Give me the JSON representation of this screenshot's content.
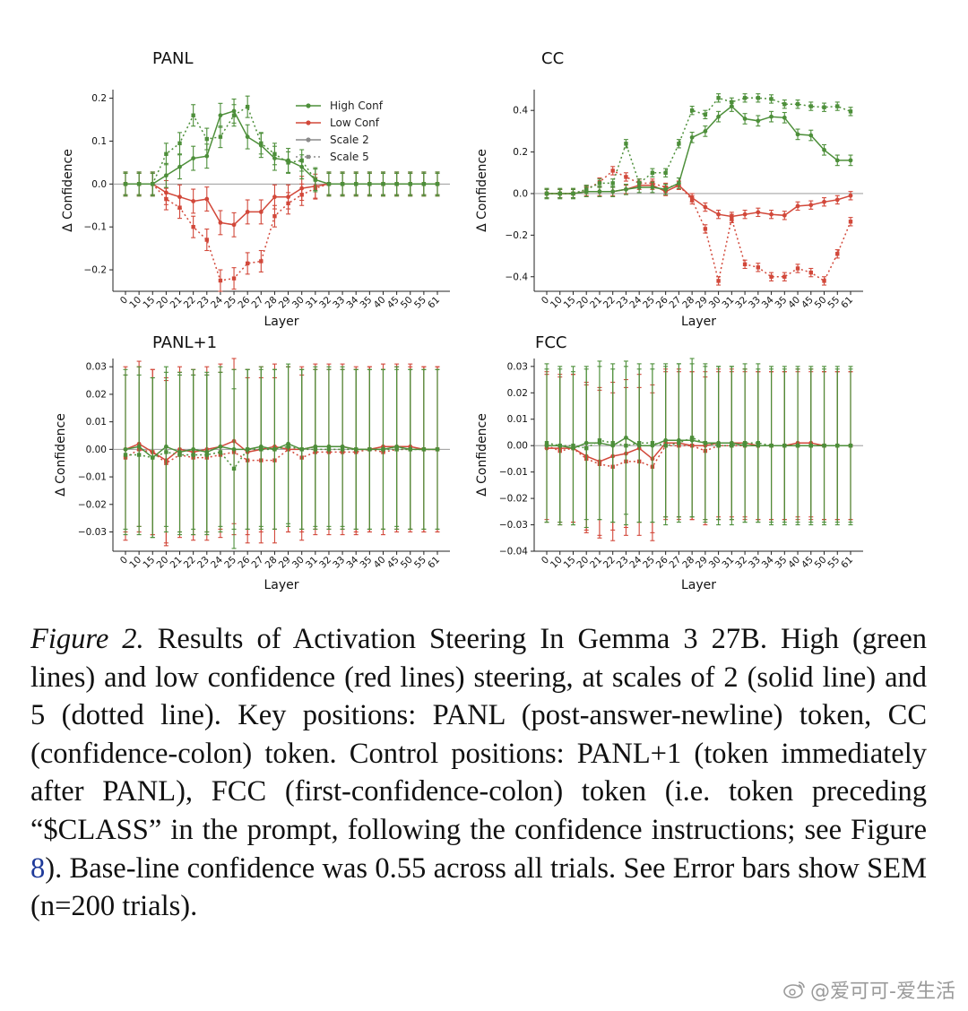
{
  "colors": {
    "high": "#4d8f3a",
    "low": "#d2483a",
    "scale2_legend": "#8a8a8a"
  },
  "chart_data": [
    {
      "type": "line",
      "title": "PANL",
      "xlabel": "Layer",
      "ylabel": "Δ Confidence",
      "categories": [
        "0",
        "10",
        "15",
        "20",
        "21",
        "22",
        "23",
        "24",
        "25",
        "26",
        "27",
        "28",
        "29",
        "30",
        "31",
        "32",
        "33",
        "34",
        "35",
        "40",
        "45",
        "50",
        "55",
        "61"
      ],
      "ylim": [
        -0.25,
        0.22
      ],
      "yticks": [
        -0.2,
        -0.1,
        0.0,
        0.1,
        0.2
      ],
      "ytick_labels": [
        "−0.2",
        "−0.1",
        "0.0",
        "0.1",
        "0.2"
      ],
      "legend": {
        "position": "top-right",
        "entries": [
          {
            "label": "High Conf",
            "style": "high-solid"
          },
          {
            "label": "Low Conf",
            "style": "low-solid"
          },
          {
            "label": "Scale 2",
            "style": "gray-solid"
          },
          {
            "label": "Scale 5",
            "style": "gray-dotted"
          }
        ]
      },
      "series": [
        {
          "name": "High Conf, Scale 2",
          "values": [
            0,
            0,
            0,
            0.02,
            0.04,
            0.06,
            0.065,
            0.16,
            0.17,
            0.11,
            0.09,
            0.06,
            0.055,
            0.04,
            0.01,
            0,
            0,
            0,
            0,
            0,
            0,
            0,
            0,
            0
          ],
          "err": 0.028
        },
        {
          "name": "High Conf, Scale 5",
          "values": [
            0,
            0,
            0,
            0.07,
            0.095,
            0.16,
            0.105,
            0.11,
            0.16,
            0.18,
            0.095,
            0.07,
            0.05,
            0.055,
            0.01,
            0,
            0,
            0,
            0,
            0,
            0,
            0,
            0,
            0
          ],
          "err": 0.025
        },
        {
          "name": "Low Conf, Scale 2",
          "values": [
            0,
            0,
            0,
            -0.02,
            -0.03,
            -0.04,
            -0.035,
            -0.09,
            -0.095,
            -0.065,
            -0.065,
            -0.03,
            -0.03,
            -0.01,
            -0.005,
            0,
            0,
            0,
            0,
            0,
            0,
            0,
            0,
            0
          ],
          "err": 0.028
        },
        {
          "name": "Low Conf, Scale 5",
          "values": [
            0,
            0,
            0,
            -0.035,
            -0.055,
            -0.1,
            -0.13,
            -0.225,
            -0.22,
            -0.185,
            -0.18,
            -0.075,
            -0.045,
            -0.025,
            -0.01,
            0,
            0,
            0,
            0,
            0,
            0,
            0,
            0,
            0
          ],
          "err": 0.025
        }
      ]
    },
    {
      "type": "line",
      "title": "CC",
      "xlabel": "Layer",
      "ylabel": "Δ Confidence",
      "categories": [
        "0",
        "10",
        "15",
        "20",
        "21",
        "22",
        "23",
        "24",
        "25",
        "26",
        "27",
        "28",
        "29",
        "30",
        "31",
        "32",
        "33",
        "34",
        "35",
        "40",
        "45",
        "50",
        "55",
        "61"
      ],
      "ylim": [
        -0.47,
        0.5
      ],
      "yticks": [
        -0.4,
        -0.2,
        0.0,
        0.2,
        0.4
      ],
      "ytick_labels": [
        "−0.4",
        "−0.2",
        "0.0",
        "0.2",
        "0.4"
      ],
      "series": [
        {
          "name": "High Conf, Scale 2",
          "values": [
            0,
            0,
            0,
            0.01,
            0.01,
            0.01,
            0.02,
            0.03,
            0.03,
            0.02,
            0.05,
            0.27,
            0.3,
            0.37,
            0.42,
            0.36,
            0.35,
            0.37,
            0.365,
            0.285,
            0.28,
            0.21,
            0.16,
            0.16
          ],
          "err": 0.025
        },
        {
          "name": "High Conf, Scale 5",
          "values": [
            0,
            0,
            0,
            0.02,
            0.05,
            0.05,
            0.24,
            0.05,
            0.1,
            0.1,
            0.24,
            0.4,
            0.38,
            0.46,
            0.44,
            0.46,
            0.46,
            0.455,
            0.43,
            0.43,
            0.42,
            0.415,
            0.42,
            0.395
          ],
          "err": 0.02
        },
        {
          "name": "Low Conf, Scale 2",
          "values": [
            0,
            0,
            0,
            0.01,
            0.01,
            0.01,
            0.02,
            0.04,
            0.04,
            0.01,
            0.04,
            -0.02,
            -0.065,
            -0.1,
            -0.11,
            -0.1,
            -0.09,
            -0.1,
            -0.105,
            -0.06,
            -0.055,
            -0.04,
            -0.03,
            -0.01
          ],
          "err": 0.02
        },
        {
          "name": "Low Conf, Scale 5",
          "values": [
            0,
            0,
            0,
            0.02,
            0.055,
            0.11,
            0.08,
            0.05,
            0.05,
            0.03,
            0.04,
            -0.03,
            -0.17,
            -0.42,
            -0.12,
            -0.34,
            -0.355,
            -0.4,
            -0.4,
            -0.36,
            -0.38,
            -0.42,
            -0.29,
            -0.135
          ],
          "err": 0.02
        }
      ]
    },
    {
      "type": "line",
      "title": "PANL+1",
      "xlabel": "Layer",
      "ylabel": "Δ Confidence",
      "categories": [
        "0",
        "10",
        "15",
        "20",
        "21",
        "22",
        "23",
        "24",
        "25",
        "26",
        "27",
        "28",
        "29",
        "30",
        "31",
        "32",
        "33",
        "34",
        "35",
        "40",
        "45",
        "50",
        "55",
        "61"
      ],
      "ylim": [
        -0.037,
        0.033
      ],
      "yticks": [
        -0.03,
        -0.02,
        -0.01,
        0.0,
        0.01,
        0.02,
        0.03
      ],
      "ytick_labels": [
        "−0.03",
        "−0.02",
        "−0.01",
        "0.00",
        "0.01",
        "0.02",
        "0.03"
      ],
      "series": [
        {
          "name": "High Conf, Scale 2",
          "values": [
            0,
            0.001,
            -0.003,
            0.001,
            -0.001,
            0,
            -0.001,
            0.001,
            0,
            0,
            0.001,
            0,
            0.002,
            0,
            0.001,
            0.001,
            0.001,
            0,
            0,
            0,
            0.001,
            0,
            0,
            0
          ],
          "err": 0.029
        },
        {
          "name": "High Conf, Scale 5",
          "values": [
            -0.002,
            -0.002,
            -0.003,
            -0.001,
            -0.002,
            -0.002,
            -0.002,
            -0.001,
            -0.007,
            0,
            0,
            0,
            0.001,
            0,
            0,
            0,
            0,
            0,
            0,
            0,
            0,
            0,
            0,
            0
          ],
          "err": 0.029
        },
        {
          "name": "Low Conf, Scale 2",
          "values": [
            0,
            0.002,
            -0.001,
            -0.004,
            0,
            -0.001,
            0,
            0.001,
            0.003,
            -0.001,
            0,
            0.001,
            0,
            0,
            0.001,
            0.001,
            0.001,
            0,
            0,
            0.001,
            0.001,
            0.001,
            0,
            0
          ],
          "err": 0.03
        },
        {
          "name": "Low Conf, Scale 5",
          "values": [
            -0.003,
            0,
            -0.001,
            -0.005,
            -0.002,
            -0.003,
            -0.003,
            -0.002,
            -0.001,
            -0.004,
            -0.004,
            -0.004,
            0,
            -0.003,
            -0.001,
            -0.001,
            -0.001,
            -0.001,
            0,
            -0.001,
            0,
            0,
            0,
            0
          ],
          "err": 0.03
        }
      ]
    },
    {
      "type": "line",
      "title": "FCC",
      "xlabel": "Layer",
      "ylabel": "Δ Confidence",
      "categories": [
        "0",
        "10",
        "15",
        "20",
        "21",
        "22",
        "23",
        "24",
        "25",
        "26",
        "27",
        "28",
        "29",
        "30",
        "31",
        "32",
        "33",
        "34",
        "35",
        "40",
        "45",
        "50",
        "55",
        "61"
      ],
      "ylim": [
        -0.04,
        0.033
      ],
      "yticks": [
        -0.04,
        -0.03,
        -0.02,
        -0.01,
        0.0,
        0.01,
        0.02,
        0.03
      ],
      "ytick_labels": [
        "−0.04",
        "−0.03",
        "−0.02",
        "−0.01",
        "0.00",
        "0.01",
        "0.02",
        "0.03"
      ],
      "series": [
        {
          "name": "High Conf, Scale 2",
          "values": [
            0,
            0,
            -0.001,
            0.001,
            0.001,
            0,
            0.003,
            0,
            0,
            0.002,
            0.002,
            0.002,
            0.001,
            0.001,
            0.001,
            0,
            0,
            0,
            0,
            0,
            0,
            0,
            0,
            0
          ],
          "err": 0.029
        },
        {
          "name": "High Conf, Scale 5",
          "values": [
            0.001,
            0,
            0,
            -0.001,
            0.002,
            0.001,
            0,
            0.001,
            0.001,
            0,
            0.001,
            0.003,
            0.001,
            0,
            0,
            0.001,
            0.001,
            0,
            0,
            0,
            0,
            0,
            0,
            0
          ],
          "err": 0.03
        },
        {
          "name": "Low Conf, Scale 2",
          "values": [
            -0.001,
            -0.001,
            -0.001,
            -0.004,
            -0.006,
            -0.004,
            -0.003,
            -0.001,
            -0.005,
            0.001,
            0.001,
            0,
            0,
            0.001,
            0.001,
            0.001,
            0,
            0,
            0,
            0.001,
            0.001,
            0,
            0,
            0
          ],
          "err": 0.028
        },
        {
          "name": "Low Conf, Scale 5",
          "values": [
            0,
            -0.002,
            -0.001,
            -0.005,
            -0.007,
            -0.008,
            -0.006,
            -0.006,
            -0.008,
            0,
            0,
            0,
            -0.002,
            0,
            0,
            0,
            0,
            0,
            0,
            0,
            0,
            0,
            0,
            0
          ],
          "err": 0.028
        }
      ]
    }
  ],
  "caption": {
    "figure_label": "Figure 2.",
    "text_before_ref": "Results of Activation Steering In Gemma 3 27B. High (green lines) and low confidence (red lines) steering, at scales of 2 (solid line) and 5 (dotted line).  Key positions: PANL (post-answer-newline) token, CC (confidence-colon) token.  Control positions: PANL+1 (token immediately after PANL), FCC (first-confidence-colon) token (i.e. token preceding “$CLASS” in the prompt, following the confidence instructions; see Figure",
    "ref": "8",
    "text_after_ref": "). Base-line confidence was 0.55 across all trials. See Error bars show SEM (n=200 trials)."
  },
  "watermark": {
    "text": "@爱可可-爱生活",
    "icon": "weibo-icon"
  }
}
